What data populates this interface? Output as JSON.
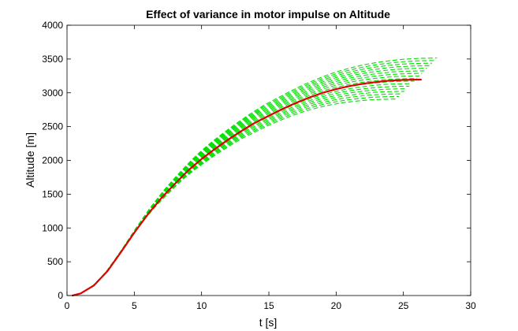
{
  "chart_data": {
    "type": "line",
    "title": "Effect of variance in motor impulse on Altitude",
    "xlabel": "t [s]",
    "ylabel": "Altitude [m]",
    "xlim": [
      0,
      30
    ],
    "ylim": [
      0,
      4000
    ],
    "xticks": [
      0,
      5,
      10,
      15,
      20,
      25,
      30
    ],
    "yticks": [
      0,
      500,
      1000,
      1500,
      2000,
      2500,
      3000,
      3500,
      4000
    ],
    "grid": false,
    "box": true,
    "colors": {
      "nominal": "#e00000",
      "variations": "#00e000",
      "axes": "#000000"
    },
    "series": [
      {
        "style": "solid",
        "color": "#e00000",
        "x": [
          0.4,
          1,
          2,
          3,
          4,
          5,
          6,
          7,
          8,
          9,
          10,
          11,
          12,
          13,
          14,
          15,
          16,
          17,
          18,
          19,
          20,
          21,
          22,
          23,
          24,
          25,
          26,
          26.3
        ],
        "y": [
          0,
          30,
          150,
          360,
          640,
          930,
          1200,
          1440,
          1650,
          1850,
          2020,
          2170,
          2310,
          2440,
          2560,
          2660,
          2760,
          2850,
          2930,
          3000,
          3055,
          3100,
          3135,
          3160,
          3180,
          3190,
          3195,
          3195
        ]
      }
    ],
    "variations": {
      "style": "dashed",
      "color": "#00e000",
      "count": 17,
      "burnout_time_range": [
        24.5,
        27.5
      ],
      "altitude_scale_range": [
        0.91,
        1.1
      ]
    }
  }
}
